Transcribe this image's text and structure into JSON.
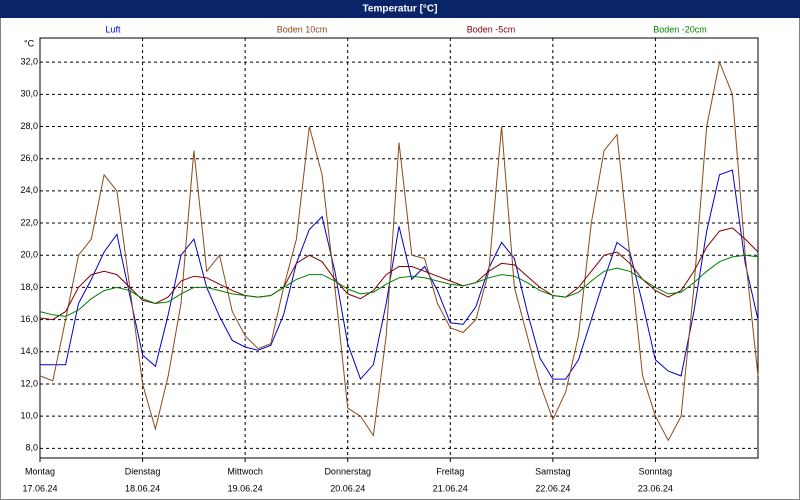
{
  "chart_data": {
    "type": "line",
    "title": "Temperatur [°C]",
    "y_unit": "°C",
    "x": [
      0,
      3,
      6,
      9,
      12,
      15,
      18,
      21,
      24,
      27,
      30,
      33,
      36,
      39,
      42,
      45,
      48,
      51,
      54,
      57,
      60,
      63,
      66,
      69,
      72,
      75,
      78,
      81,
      84,
      87,
      90,
      93,
      96,
      99,
      102,
      105,
      108,
      111,
      114,
      117,
      120,
      123,
      126,
      129,
      132,
      135,
      138,
      141,
      144,
      147,
      150,
      153,
      156,
      159,
      162,
      165,
      168
    ],
    "xlim": [
      0,
      168
    ],
    "xticks": [
      {
        "value": 0,
        "label": "Montag",
        "sublabel": "17.06.24"
      },
      {
        "value": 24,
        "label": "Dienstag",
        "sublabel": "18.06.24"
      },
      {
        "value": 48,
        "label": "Mittwoch",
        "sublabel": "19.06.24"
      },
      {
        "value": 72,
        "label": "Donnerstag",
        "sublabel": "20.06.24"
      },
      {
        "value": 96,
        "label": "Freitag",
        "sublabel": "21.06.24"
      },
      {
        "value": 120,
        "label": "Samstag",
        "sublabel": "22.06.24"
      },
      {
        "value": 144,
        "label": "Sonntag",
        "sublabel": "23.06.24"
      }
    ],
    "ylim": [
      7.4,
      33.5
    ],
    "yticks": [
      {
        "value": 8,
        "label": "8,0"
      },
      {
        "value": 10,
        "label": "10,0"
      },
      {
        "value": 12,
        "label": "12,0"
      },
      {
        "value": 14,
        "label": "14,0"
      },
      {
        "value": 16,
        "label": "16,0"
      },
      {
        "value": 18,
        "label": "18,0"
      },
      {
        "value": 20,
        "label": "20,0"
      },
      {
        "value": 22,
        "label": "22,0"
      },
      {
        "value": 24,
        "label": "24,0"
      },
      {
        "value": 26,
        "label": "26,0"
      },
      {
        "value": 28,
        "label": "28,0"
      },
      {
        "value": 30,
        "label": "30,0"
      },
      {
        "value": 32,
        "label": "32,0"
      }
    ],
    "grid": true,
    "series": [
      {
        "name": "Luft",
        "color": "#0000cc",
        "values": [
          13.2,
          13.2,
          13.2,
          17,
          18.5,
          20.2,
          21.3,
          17.5,
          13.8,
          13.1,
          16.3,
          20,
          21,
          18,
          16.2,
          14.7,
          14.3,
          14.1,
          14.4,
          16.3,
          19.5,
          21.6,
          22.4,
          19,
          14.5,
          12.3,
          13.2,
          17,
          21.8,
          18.5,
          19.3,
          17.8,
          15.8,
          15.7,
          16.8,
          19.2,
          20.8,
          19.8,
          16.5,
          13.6,
          12.3,
          12.3,
          13.5,
          16,
          18.5,
          20.8,
          20.2,
          17,
          13.5,
          12.8,
          12.5,
          16.5,
          21.5,
          25,
          25.3,
          19.5,
          16
        ]
      },
      {
        "name": "Boden 10cm",
        "color": "#8b4a1c",
        "values": [
          12.5,
          12.2,
          16,
          20,
          21,
          25,
          24,
          18,
          12,
          9.2,
          12.5,
          17,
          26.5,
          19,
          20,
          16.5,
          15,
          14.2,
          14.5,
          18,
          21,
          28,
          25,
          18,
          10.5,
          10,
          8.8,
          15,
          27,
          20,
          19.8,
          17,
          15.5,
          15.2,
          16,
          19,
          28,
          18,
          15,
          12,
          9.8,
          11.5,
          15,
          22,
          26.5,
          27.5,
          20,
          12.5,
          10,
          8.5,
          10,
          18,
          28,
          32,
          30,
          20,
          12.5
        ]
      },
      {
        "name": "Boden -5cm",
        "color": "#800000",
        "values": [
          16.1,
          16,
          16.5,
          18,
          18.8,
          19,
          18.8,
          18,
          17.2,
          17,
          17.4,
          18.4,
          18.7,
          18.6,
          18.2,
          17.8,
          17.5,
          17.4,
          17.5,
          18,
          19.5,
          20,
          19.6,
          18.5,
          17.6,
          17.3,
          17.8,
          18.8,
          19.3,
          19.3,
          19,
          18.7,
          18.4,
          18.1,
          18.3,
          19,
          19.5,
          19.4,
          18.7,
          18,
          17.5,
          17.4,
          18,
          19,
          20,
          20.2,
          19.5,
          18.5,
          17.8,
          17.4,
          17.8,
          19,
          20.5,
          21.5,
          21.7,
          21,
          20.2
        ]
      },
      {
        "name": "Boden -20cm",
        "color": "#008000",
        "values": [
          16.5,
          16.3,
          16.2,
          16.6,
          17.3,
          17.8,
          18,
          17.8,
          17.3,
          17,
          17.1,
          17.6,
          18,
          18,
          17.8,
          17.6,
          17.5,
          17.4,
          17.5,
          18,
          18.5,
          18.8,
          18.8,
          18.4,
          17.9,
          17.6,
          17.7,
          18.2,
          18.6,
          18.7,
          18.6,
          18.4,
          18.2,
          18.1,
          18.3,
          18.6,
          18.8,
          18.7,
          18.3,
          17.8,
          17.5,
          17.4,
          17.7,
          18.4,
          19,
          19.2,
          19,
          18.5,
          18,
          17.6,
          17.7,
          18.3,
          19,
          19.6,
          19.9,
          20,
          19.9
        ]
      }
    ]
  }
}
